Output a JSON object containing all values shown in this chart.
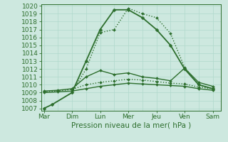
{
  "background_color": "#cde8df",
  "grid_color": "#b0d9cc",
  "line_color": "#2d6e2d",
  "xlabel": "Pression niveau de la mer( hPa )",
  "xtick_labels": [
    "Mar",
    "Dim",
    "Lun",
    "Mer",
    "Jeu",
    "Ven",
    "Sam"
  ],
  "ytick_min": 1007,
  "ytick_max": 1020,
  "series": [
    {
      "name": "main_solid",
      "x": [
        0,
        0.3,
        1,
        1.5,
        2,
        2.5,
        3,
        3.5,
        4,
        4.5,
        5,
        5.5,
        6
      ],
      "y": [
        1007.0,
        1007.5,
        1009.0,
        1013.0,
        1017.0,
        1019.5,
        1019.5,
        1018.5,
        1017.0,
        1015.0,
        1012.0,
        1010.0,
        1009.5
      ],
      "linewidth": 1.3,
      "linestyle": "-",
      "marker": "D",
      "markersize": 2.5
    },
    {
      "name": "dotted_high",
      "x": [
        1,
        1.5,
        2,
        2.5,
        3,
        3.5,
        4,
        4.5,
        5,
        5.5,
        6
      ],
      "y": [
        1009.0,
        1012.0,
        1016.6,
        1017.0,
        1019.7,
        1019.0,
        1018.5,
        1016.5,
        1012.2,
        1010.0,
        1009.5
      ],
      "linewidth": 1.0,
      "linestyle": ":",
      "marker": "D",
      "markersize": 2.0
    },
    {
      "name": "flat_solid_upper",
      "x": [
        0,
        0.5,
        1,
        1.5,
        2,
        2.5,
        3,
        3.5,
        4,
        4.5,
        5,
        5.5,
        6
      ],
      "y": [
        1009.2,
        1009.3,
        1009.5,
        1011.0,
        1011.8,
        1011.3,
        1011.5,
        1011.0,
        1010.8,
        1010.5,
        1012.1,
        1010.3,
        1009.8
      ],
      "linewidth": 1.0,
      "linestyle": "-",
      "marker": "D",
      "markersize": 2.0
    },
    {
      "name": "flat_dotted_lower",
      "x": [
        0,
        0.5,
        1,
        1.5,
        2,
        2.5,
        3,
        3.5,
        4,
        4.5,
        5,
        5.5,
        6
      ],
      "y": [
        1009.1,
        1009.2,
        1009.4,
        1010.0,
        1010.3,
        1010.5,
        1010.7,
        1010.6,
        1010.4,
        1010.2,
        1010.1,
        1009.7,
        1009.5
      ],
      "linewidth": 1.0,
      "linestyle": ":",
      "marker": "D",
      "markersize": 2.0
    },
    {
      "name": "flat_solid_lowest",
      "x": [
        0,
        0.5,
        1,
        1.5,
        2,
        2.5,
        3,
        3.5,
        4,
        4.5,
        5,
        5.5,
        6
      ],
      "y": [
        1009.0,
        1009.1,
        1009.2,
        1009.5,
        1009.8,
        1010.0,
        1010.2,
        1010.1,
        1010.0,
        1009.9,
        1009.8,
        1009.5,
        1009.3
      ],
      "linewidth": 1.0,
      "linestyle": "-",
      "marker": "D",
      "markersize": 2.0
    }
  ]
}
